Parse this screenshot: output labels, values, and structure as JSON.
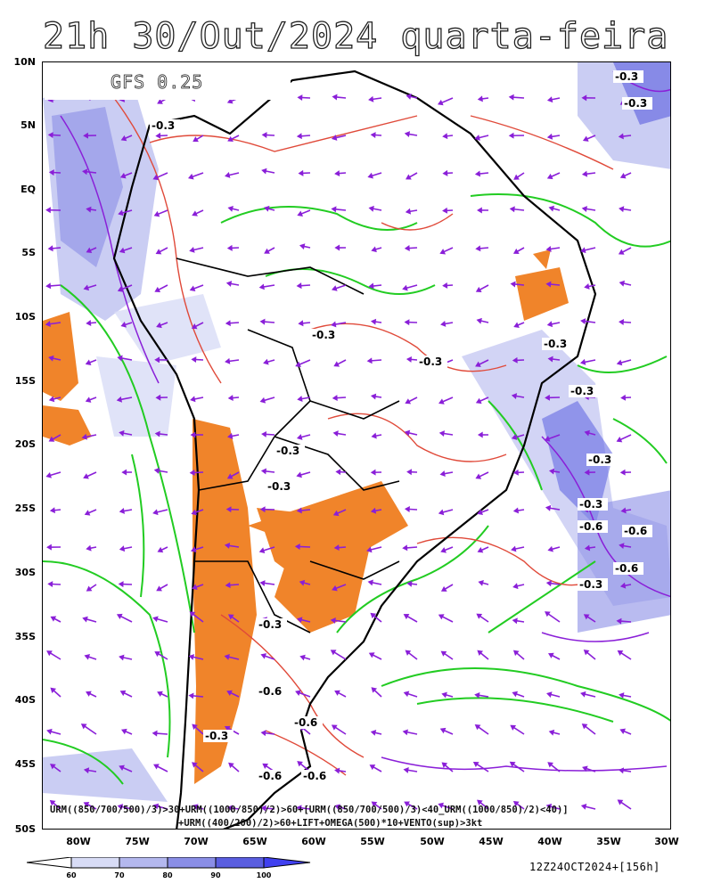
{
  "title": "21h 30/Out/2024 quarta-feira",
  "model": "GFS 0.25",
  "lat_labels": [
    "10N",
    "5N",
    "EQ",
    "5S",
    "10S",
    "15S",
    "20S",
    "25S",
    "30S",
    "35S",
    "40S",
    "45S",
    "50S"
  ],
  "lon_labels": [
    "80W",
    "75W",
    "70W",
    "65W",
    "60W",
    "55W",
    "50W",
    "45W",
    "40W",
    "35W",
    "30W"
  ],
  "caption_line1": "URM((850/700/500)/3)>30+URM((1000/850)/2)>60+[URM((850/700/500)/3)<40_URM((1000/850)/2)<40)]",
  "caption_line2": "+URM((400/200)/2)>60+LIFT+OMEGA(500)*10+VENTO(sup)>3kt",
  "legend": {
    "ticks": [
      "60",
      "70",
      "80",
      "90",
      "100"
    ],
    "colors": [
      "#ffffff",
      "#d8dcf6",
      "#b4b8ee",
      "#8a8ee6",
      "#5a5ee0",
      "#4040f0"
    ]
  },
  "timestamp": "12Z24OCT2024+[156h]",
  "contour_labels": [
    {
      "text": "-0.3"
    },
    {
      "text": "-0.3"
    },
    {
      "text": "-0.3"
    },
    {
      "text": "-0.3"
    },
    {
      "text": "-0.3"
    },
    {
      "text": "-0.3"
    },
    {
      "text": "-0.3"
    },
    {
      "text": "-0.3"
    },
    {
      "text": "-0.3"
    },
    {
      "text": "-0.3"
    },
    {
      "text": "-0.6"
    },
    {
      "text": "-0.6"
    },
    {
      "text": "-0.6"
    },
    {
      "text": "-0.6"
    },
    {
      "text": "-0.6"
    },
    {
      "text": "-0.3"
    },
    {
      "text": "-0.3"
    },
    {
      "text": "-0.3"
    },
    {
      "text": "-0.6"
    },
    {
      "text": "-0.3"
    },
    {
      "text": "-0.6"
    }
  ],
  "colors": {
    "humidity_green": "#22cc22",
    "omega_red": "#e04a3a",
    "wind_purple": "#8a1fd8",
    "lift_orange": "#f0842a",
    "coast": "#000000",
    "shade_blue": "#5a5ee0"
  }
}
